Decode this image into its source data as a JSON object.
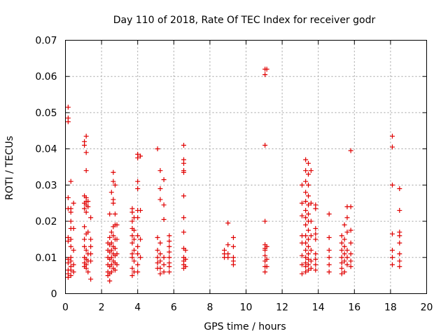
{
  "chart_data": {
    "type": "scatter",
    "title": "Day 110 of 2018, Rate Of TEC Index for receiver godr",
    "xlabel": "GPS time / hours",
    "ylabel": "ROTI / TECUs",
    "xlim": [
      0,
      20
    ],
    "ylim": [
      0,
      0.07
    ],
    "grid": true,
    "marker": "+",
    "color": "#e00000",
    "x_ticks": [
      0,
      2,
      4,
      6,
      8,
      10,
      12,
      14,
      16,
      18,
      20
    ],
    "x_tick_labels": [
      "0",
      "2",
      "4",
      "6",
      "8",
      "10",
      "12",
      "14",
      "16",
      "18",
      "20"
    ],
    "y_ticks": [
      0,
      0.01,
      0.02,
      0.03,
      0.04,
      0.05,
      0.06,
      0.07
    ],
    "y_tick_labels": [
      "0",
      "0.01",
      "0.02",
      "0.03",
      "0.04",
      "0.05",
      "0.06",
      "0.07"
    ],
    "series": [
      {
        "name": "ROTI",
        "points": [
          [
            0.15,
            0.0515
          ],
          [
            0.15,
            0.0485
          ],
          [
            0.15,
            0.0475
          ],
          [
            0.15,
            0.0235
          ],
          [
            0.15,
            0.0265
          ],
          [
            0.15,
            0.0155
          ],
          [
            0.15,
            0.0145
          ],
          [
            0.15,
            0.0095
          ],
          [
            0.15,
            0.0085
          ],
          [
            0.15,
            0.0065
          ],
          [
            0.15,
            0.0055
          ],
          [
            0.15,
            0.0045
          ],
          [
            0.3,
            0.031
          ],
          [
            0.3,
            0.0235
          ],
          [
            0.3,
            0.0225
          ],
          [
            0.3,
            0.02
          ],
          [
            0.3,
            0.018
          ],
          [
            0.3,
            0.015
          ],
          [
            0.3,
            0.013
          ],
          [
            0.3,
            0.01
          ],
          [
            0.3,
            0.009
          ],
          [
            0.3,
            0.0075
          ],
          [
            0.3,
            0.0065
          ],
          [
            0.3,
            0.005
          ],
          [
            0.45,
            0.025
          ],
          [
            0.45,
            0.018
          ],
          [
            0.45,
            0.012
          ],
          [
            0.45,
            0.008
          ],
          [
            0.45,
            0.006
          ],
          [
            1.05,
            0.042
          ],
          [
            1.05,
            0.041
          ],
          [
            1.05,
            0.027
          ],
          [
            1.05,
            0.025
          ],
          [
            1.05,
            0.0235
          ],
          [
            1.05,
            0.0185
          ],
          [
            1.05,
            0.015
          ],
          [
            1.05,
            0.013
          ],
          [
            1.05,
            0.01
          ],
          [
            1.05,
            0.0085
          ],
          [
            1.05,
            0.0075
          ],
          [
            1.15,
            0.0435
          ],
          [
            1.15,
            0.039
          ],
          [
            1.15,
            0.034
          ],
          [
            1.15,
            0.0265
          ],
          [
            1.15,
            0.0255
          ],
          [
            1.15,
            0.0245
          ],
          [
            1.15,
            0.0225
          ],
          [
            1.15,
            0.0165
          ],
          [
            1.15,
            0.012
          ],
          [
            1.15,
            0.0095
          ],
          [
            1.15,
            0.008
          ],
          [
            1.15,
            0.007
          ],
          [
            1.25,
            0.0255
          ],
          [
            1.25,
            0.024
          ],
          [
            1.25,
            0.017
          ],
          [
            1.25,
            0.011
          ],
          [
            1.25,
            0.009
          ],
          [
            1.25,
            0.006
          ],
          [
            1.4,
            0.021
          ],
          [
            1.4,
            0.015
          ],
          [
            1.4,
            0.013
          ],
          [
            1.4,
            0.011
          ],
          [
            1.4,
            0.009
          ],
          [
            1.4,
            0.004
          ],
          [
            2.35,
            0.014
          ],
          [
            2.35,
            0.012
          ],
          [
            2.35,
            0.01
          ],
          [
            2.35,
            0.008
          ],
          [
            2.35,
            0.006
          ],
          [
            2.35,
            0.005
          ],
          [
            2.45,
            0.022
          ],
          [
            2.45,
            0.0155
          ],
          [
            2.45,
            0.0135
          ],
          [
            2.45,
            0.0115
          ],
          [
            2.45,
            0.0095
          ],
          [
            2.45,
            0.0075
          ],
          [
            2.45,
            0.0055
          ],
          [
            2.45,
            0.0035
          ],
          [
            2.55,
            0.028
          ],
          [
            2.55,
            0.017
          ],
          [
            2.55,
            0.014
          ],
          [
            2.55,
            0.012
          ],
          [
            2.55,
            0.01
          ],
          [
            2.55,
            0.008
          ],
          [
            2.55,
            0.006
          ],
          [
            2.65,
            0.0335
          ],
          [
            2.65,
            0.031
          ],
          [
            2.65,
            0.026
          ],
          [
            2.65,
            0.025
          ],
          [
            2.65,
            0.0185
          ],
          [
            2.65,
            0.016
          ],
          [
            2.65,
            0.013
          ],
          [
            2.65,
            0.011
          ],
          [
            2.65,
            0.009
          ],
          [
            2.65,
            0.007
          ],
          [
            2.75,
            0.03
          ],
          [
            2.75,
            0.022
          ],
          [
            2.75,
            0.019
          ],
          [
            2.75,
            0.015
          ],
          [
            2.75,
            0.0125
          ],
          [
            2.75,
            0.0105
          ],
          [
            2.75,
            0.0085
          ],
          [
            2.75,
            0.0065
          ],
          [
            2.85,
            0.019
          ],
          [
            2.85,
            0.015
          ],
          [
            2.85,
            0.011
          ],
          [
            2.85,
            0.008
          ],
          [
            3.7,
            0.0235
          ],
          [
            3.7,
            0.0225
          ],
          [
            3.7,
            0.02
          ],
          [
            3.7,
            0.018
          ],
          [
            3.7,
            0.016
          ],
          [
            3.7,
            0.014
          ],
          [
            3.7,
            0.011
          ],
          [
            3.7,
            0.01
          ],
          [
            3.7,
            0.007
          ],
          [
            3.7,
            0.005
          ],
          [
            3.8,
            0.021
          ],
          [
            3.8,
            0.0175
          ],
          [
            3.8,
            0.015
          ],
          [
            3.8,
            0.012
          ],
          [
            3.8,
            0.009
          ],
          [
            3.8,
            0.006
          ],
          [
            4.0,
            0.0385
          ],
          [
            4.0,
            0.0375
          ],
          [
            4.0,
            0.031
          ],
          [
            4.0,
            0.029
          ],
          [
            4.0,
            0.023
          ],
          [
            4.0,
            0.021
          ],
          [
            4.0,
            0.016
          ],
          [
            4.0,
            0.013
          ],
          [
            4.0,
            0.011
          ],
          [
            4.0,
            0.008
          ],
          [
            4.0,
            0.006
          ],
          [
            4.15,
            0.038
          ],
          [
            4.15,
            0.023
          ],
          [
            4.15,
            0.015
          ],
          [
            4.15,
            0.01
          ],
          [
            5.1,
            0.04
          ],
          [
            5.1,
            0.0155
          ],
          [
            5.1,
            0.012
          ],
          [
            5.1,
            0.01
          ],
          [
            5.1,
            0.0085
          ],
          [
            5.1,
            0.007
          ],
          [
            5.25,
            0.034
          ],
          [
            5.25,
            0.029
          ],
          [
            5.25,
            0.026
          ],
          [
            5.25,
            0.014
          ],
          [
            5.25,
            0.011
          ],
          [
            5.25,
            0.009
          ],
          [
            5.25,
            0.007
          ],
          [
            5.25,
            0.0055
          ],
          [
            5.45,
            0.0315
          ],
          [
            5.45,
            0.0245
          ],
          [
            5.45,
            0.0205
          ],
          [
            5.45,
            0.01
          ],
          [
            5.45,
            0.008
          ],
          [
            5.45,
            0.006
          ],
          [
            5.75,
            0.016
          ],
          [
            5.75,
            0.0145
          ],
          [
            5.75,
            0.013
          ],
          [
            5.75,
            0.0115
          ],
          [
            5.75,
            0.01
          ],
          [
            5.75,
            0.0085
          ],
          [
            5.75,
            0.0075
          ],
          [
            5.75,
            0.006
          ],
          [
            6.55,
            0.041
          ],
          [
            6.55,
            0.037
          ],
          [
            6.55,
            0.036
          ],
          [
            6.55,
            0.034
          ],
          [
            6.55,
            0.0335
          ],
          [
            6.55,
            0.027
          ],
          [
            6.55,
            0.021
          ],
          [
            6.55,
            0.017
          ],
          [
            6.55,
            0.0125
          ],
          [
            6.55,
            0.01
          ],
          [
            6.55,
            0.009
          ],
          [
            6.55,
            0.008
          ],
          [
            6.55,
            0.007
          ],
          [
            6.65,
            0.012
          ],
          [
            6.65,
            0.0095
          ],
          [
            6.65,
            0.0075
          ],
          [
            8.8,
            0.012
          ],
          [
            8.8,
            0.011
          ],
          [
            8.8,
            0.01
          ],
          [
            9.0,
            0.0195
          ],
          [
            9.0,
            0.0135
          ],
          [
            9.0,
            0.011
          ],
          [
            9.0,
            0.01
          ],
          [
            9.3,
            0.0155
          ],
          [
            9.3,
            0.013
          ],
          [
            9.3,
            0.01
          ],
          [
            9.3,
            0.009
          ],
          [
            9.3,
            0.008
          ],
          [
            11.05,
            0.062
          ],
          [
            11.05,
            0.0605
          ],
          [
            11.05,
            0.041
          ],
          [
            11.05,
            0.02
          ],
          [
            11.05,
            0.0135
          ],
          [
            11.05,
            0.0125
          ],
          [
            11.05,
            0.012
          ],
          [
            11.05,
            0.0105
          ],
          [
            11.05,
            0.009
          ],
          [
            11.05,
            0.0075
          ],
          [
            11.05,
            0.006
          ],
          [
            11.15,
            0.062
          ],
          [
            11.15,
            0.013
          ],
          [
            11.15,
            0.0095
          ],
          [
            11.15,
            0.0075
          ],
          [
            13.1,
            0.03
          ],
          [
            13.1,
            0.025
          ],
          [
            13.1,
            0.0215
          ],
          [
            13.1,
            0.016
          ],
          [
            13.1,
            0.014
          ],
          [
            13.1,
            0.0105
          ],
          [
            13.1,
            0.008
          ],
          [
            13.1,
            0.0055
          ],
          [
            13.3,
            0.037
          ],
          [
            13.3,
            0.034
          ],
          [
            13.3,
            0.031
          ],
          [
            13.3,
            0.028
          ],
          [
            13.3,
            0.0255
          ],
          [
            13.3,
            0.023
          ],
          [
            13.3,
            0.021
          ],
          [
            13.3,
            0.019
          ],
          [
            13.3,
            0.016
          ],
          [
            13.3,
            0.014
          ],
          [
            13.3,
            0.012
          ],
          [
            13.3,
            0.01
          ],
          [
            13.3,
            0.0085
          ],
          [
            13.3,
            0.0075
          ],
          [
            13.3,
            0.006
          ],
          [
            13.45,
            0.036
          ],
          [
            13.45,
            0.033
          ],
          [
            13.45,
            0.03
          ],
          [
            13.45,
            0.027
          ],
          [
            13.45,
            0.0245
          ],
          [
            13.45,
            0.022
          ],
          [
            13.45,
            0.02
          ],
          [
            13.45,
            0.0175
          ],
          [
            13.45,
            0.015
          ],
          [
            13.45,
            0.013
          ],
          [
            13.45,
            0.011
          ],
          [
            13.45,
            0.0095
          ],
          [
            13.45,
            0.008
          ],
          [
            13.45,
            0.0065
          ],
          [
            13.6,
            0.034
          ],
          [
            13.6,
            0.025
          ],
          [
            13.6,
            0.02
          ],
          [
            13.6,
            0.016
          ],
          [
            13.6,
            0.012
          ],
          [
            13.6,
            0.009
          ],
          [
            13.6,
            0.007
          ],
          [
            13.85,
            0.0245
          ],
          [
            13.85,
            0.0235
          ],
          [
            13.85,
            0.018
          ],
          [
            13.85,
            0.0165
          ],
          [
            13.85,
            0.015
          ],
          [
            13.85,
            0.011
          ],
          [
            13.85,
            0.0095
          ],
          [
            13.85,
            0.008
          ],
          [
            13.85,
            0.0065
          ],
          [
            14.6,
            0.022
          ],
          [
            14.6,
            0.0155
          ],
          [
            14.6,
            0.012
          ],
          [
            14.6,
            0.01
          ],
          [
            14.6,
            0.008
          ],
          [
            14.6,
            0.006
          ],
          [
            15.3,
            0.016
          ],
          [
            15.3,
            0.014
          ],
          [
            15.3,
            0.012
          ],
          [
            15.3,
            0.01
          ],
          [
            15.3,
            0.0085
          ],
          [
            15.3,
            0.007
          ],
          [
            15.3,
            0.0055
          ],
          [
            15.45,
            0.019
          ],
          [
            15.45,
            0.015
          ],
          [
            15.45,
            0.013
          ],
          [
            15.45,
            0.011
          ],
          [
            15.45,
            0.009
          ],
          [
            15.45,
            0.006
          ],
          [
            15.6,
            0.024
          ],
          [
            15.6,
            0.021
          ],
          [
            15.6,
            0.017
          ],
          [
            15.6,
            0.012
          ],
          [
            15.6,
            0.01
          ],
          [
            15.6,
            0.008
          ],
          [
            15.8,
            0.0395
          ],
          [
            15.8,
            0.024
          ],
          [
            15.8,
            0.0175
          ],
          [
            15.8,
            0.014
          ],
          [
            15.8,
            0.011
          ],
          [
            15.8,
            0.009
          ],
          [
            15.8,
            0.0075
          ],
          [
            18.1,
            0.0435
          ],
          [
            18.1,
            0.0405
          ],
          [
            18.1,
            0.03
          ],
          [
            18.1,
            0.0165
          ],
          [
            18.1,
            0.012
          ],
          [
            18.1,
            0.01
          ],
          [
            18.1,
            0.008
          ],
          [
            18.5,
            0.029
          ],
          [
            18.5,
            0.023
          ],
          [
            18.5,
            0.017
          ],
          [
            18.5,
            0.016
          ],
          [
            18.5,
            0.014
          ],
          [
            18.5,
            0.011
          ],
          [
            18.5,
            0.009
          ],
          [
            18.5,
            0.0075
          ]
        ]
      }
    ]
  }
}
